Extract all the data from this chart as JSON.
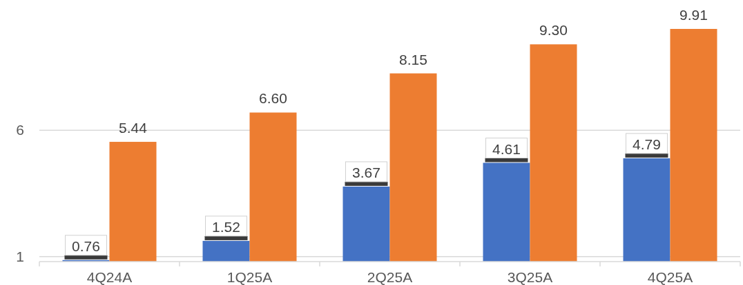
{
  "chart_data": {
    "type": "bar",
    "categories": [
      "4Q24A",
      "1Q25A",
      "2Q25A",
      "3Q25A",
      "4Q25A"
    ],
    "series": [
      {
        "color": "#4472c4",
        "values": [
          0.76,
          1.52,
          3.67,
          4.61,
          4.79
        ],
        "value_labels": [
          "0.76",
          "1.52",
          "3.67",
          "4.61",
          "4.79"
        ]
      },
      {
        "color": "#ed7d31",
        "values": [
          5.44,
          6.6,
          8.15,
          9.3,
          9.91
        ],
        "value_labels": [
          "5.44",
          "6.60",
          "8.15",
          "9.30",
          "9.91"
        ]
      }
    ],
    "ylim": [
      0.7,
      9.91
    ],
    "yticks": [
      {
        "value": 0.9,
        "label": "1"
      },
      {
        "value": 5.9,
        "label": "6"
      }
    ],
    "grid": "y"
  }
}
